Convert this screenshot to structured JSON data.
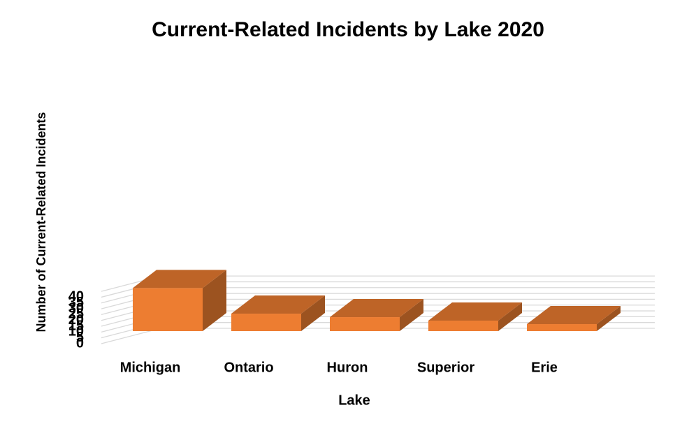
{
  "chart_data": {
    "type": "bar",
    "title": "Current-Related Incidents by Lake 2020",
    "x_label": "Lake",
    "y_label": "Number of Current-Related Incidents",
    "categories": [
      "Michigan",
      "Ontario",
      "Huron",
      "Superior",
      "Erie"
    ],
    "values": [
      37,
      15,
      12,
      9,
      6
    ],
    "color": "#ed7d31",
    "ylim": [
      0,
      45
    ],
    "yticks": [
      0,
      5,
      10,
      15,
      20,
      25,
      30,
      35,
      40
    ],
    "grid": true
  }
}
